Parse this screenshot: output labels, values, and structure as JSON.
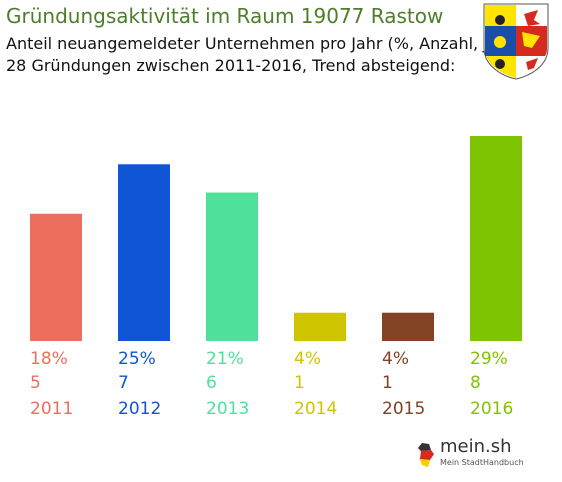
{
  "header": {
    "title": "Gründungsaktivität im Raum 19077 Rastow",
    "subtitle_line1": "Anteil neuangemeldeter Unternehmen pro Jahr (%, Anzahl, Jahr)",
    "subtitle_line2": "28 Gründungen zwischen 2011-2016, Trend absteigend:"
  },
  "crest": {
    "icon": "coat-of-arms-mecklenburg-vorpommern-icon",
    "colors": [
      "#ffe400",
      "#1a4ea8",
      "#d52b1e"
    ]
  },
  "branding": {
    "name": "mein.sh",
    "tagline": "Mein StadtHandbuch"
  },
  "chart_data": {
    "type": "bar",
    "categories": [
      "2011",
      "2012",
      "2013",
      "2014",
      "2015",
      "2016"
    ],
    "values": [
      18,
      25,
      21,
      4,
      4,
      29
    ],
    "percent_labels": [
      "18%",
      "25%",
      "21%",
      "4%",
      "4%",
      "29%"
    ],
    "counts": [
      5,
      7,
      6,
      1,
      1,
      8
    ],
    "colors": [
      "#ec6f5e",
      "#0f55d4",
      "#4fe09c",
      "#cfc400",
      "#824223",
      "#7fc400"
    ],
    "ylim": [
      0,
      29
    ],
    "grid": false,
    "legend": "none"
  }
}
